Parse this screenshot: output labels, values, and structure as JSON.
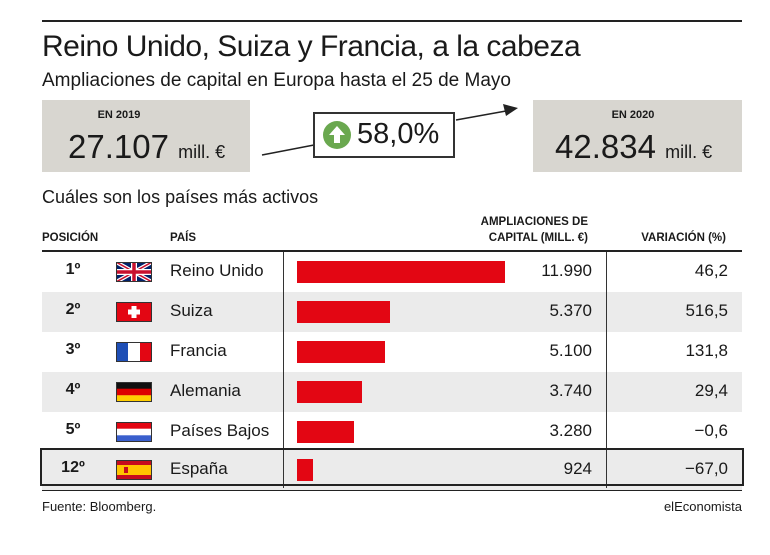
{
  "title": "Reino Unido, Suiza y Francia, a la cabeza",
  "subtitle": "Ampliaciones de capital en Europa hasta el 25 de Mayo",
  "box_2019": {
    "label": "EN 2019",
    "value": "27.107",
    "unit": "mill. €"
  },
  "box_2020": {
    "label": "EN 2020",
    "value": "42.834",
    "unit": "mill. €"
  },
  "growth": {
    "value": "58,0%",
    "icon": "up-arrow-icon"
  },
  "section_title": "Cuáles son los países más activos",
  "table": {
    "headers": {
      "position": "POSICIÓN",
      "country": "PAÍS",
      "capital_line1": "AMPLIACIONES DE",
      "capital_line2": "CAPITAL (MILL. €)",
      "variation": "VARIACIÓN (%)"
    }
  },
  "chart_data": {
    "type": "bar",
    "categories": [
      "Reino Unido",
      "Suiza",
      "Francia",
      "Alemania",
      "Países Bajos",
      "España"
    ],
    "values": [
      11990,
      5370,
      5100,
      3740,
      3280,
      924
    ],
    "ranks": [
      "1º",
      "2º",
      "3º",
      "4º",
      "5º",
      "12º"
    ],
    "value_labels": [
      "11.990",
      "5.370",
      "5.100",
      "3.740",
      "3.280",
      "924"
    ],
    "variation_labels": [
      "46,2",
      "516,5",
      "131,8",
      "29,4",
      "−0,6",
      "−67,0"
    ],
    "flags": [
      "uk-flag-icon",
      "switzerland-flag-icon",
      "france-flag-icon",
      "germany-flag-icon",
      "netherlands-flag-icon",
      "spain-flag-icon"
    ],
    "highlight": "España",
    "xlim": [
      0,
      11990
    ],
    "bar_color": "#e30613"
  },
  "footer": {
    "source": "Fuente: Bloomberg.",
    "brand": "elEconomista"
  }
}
